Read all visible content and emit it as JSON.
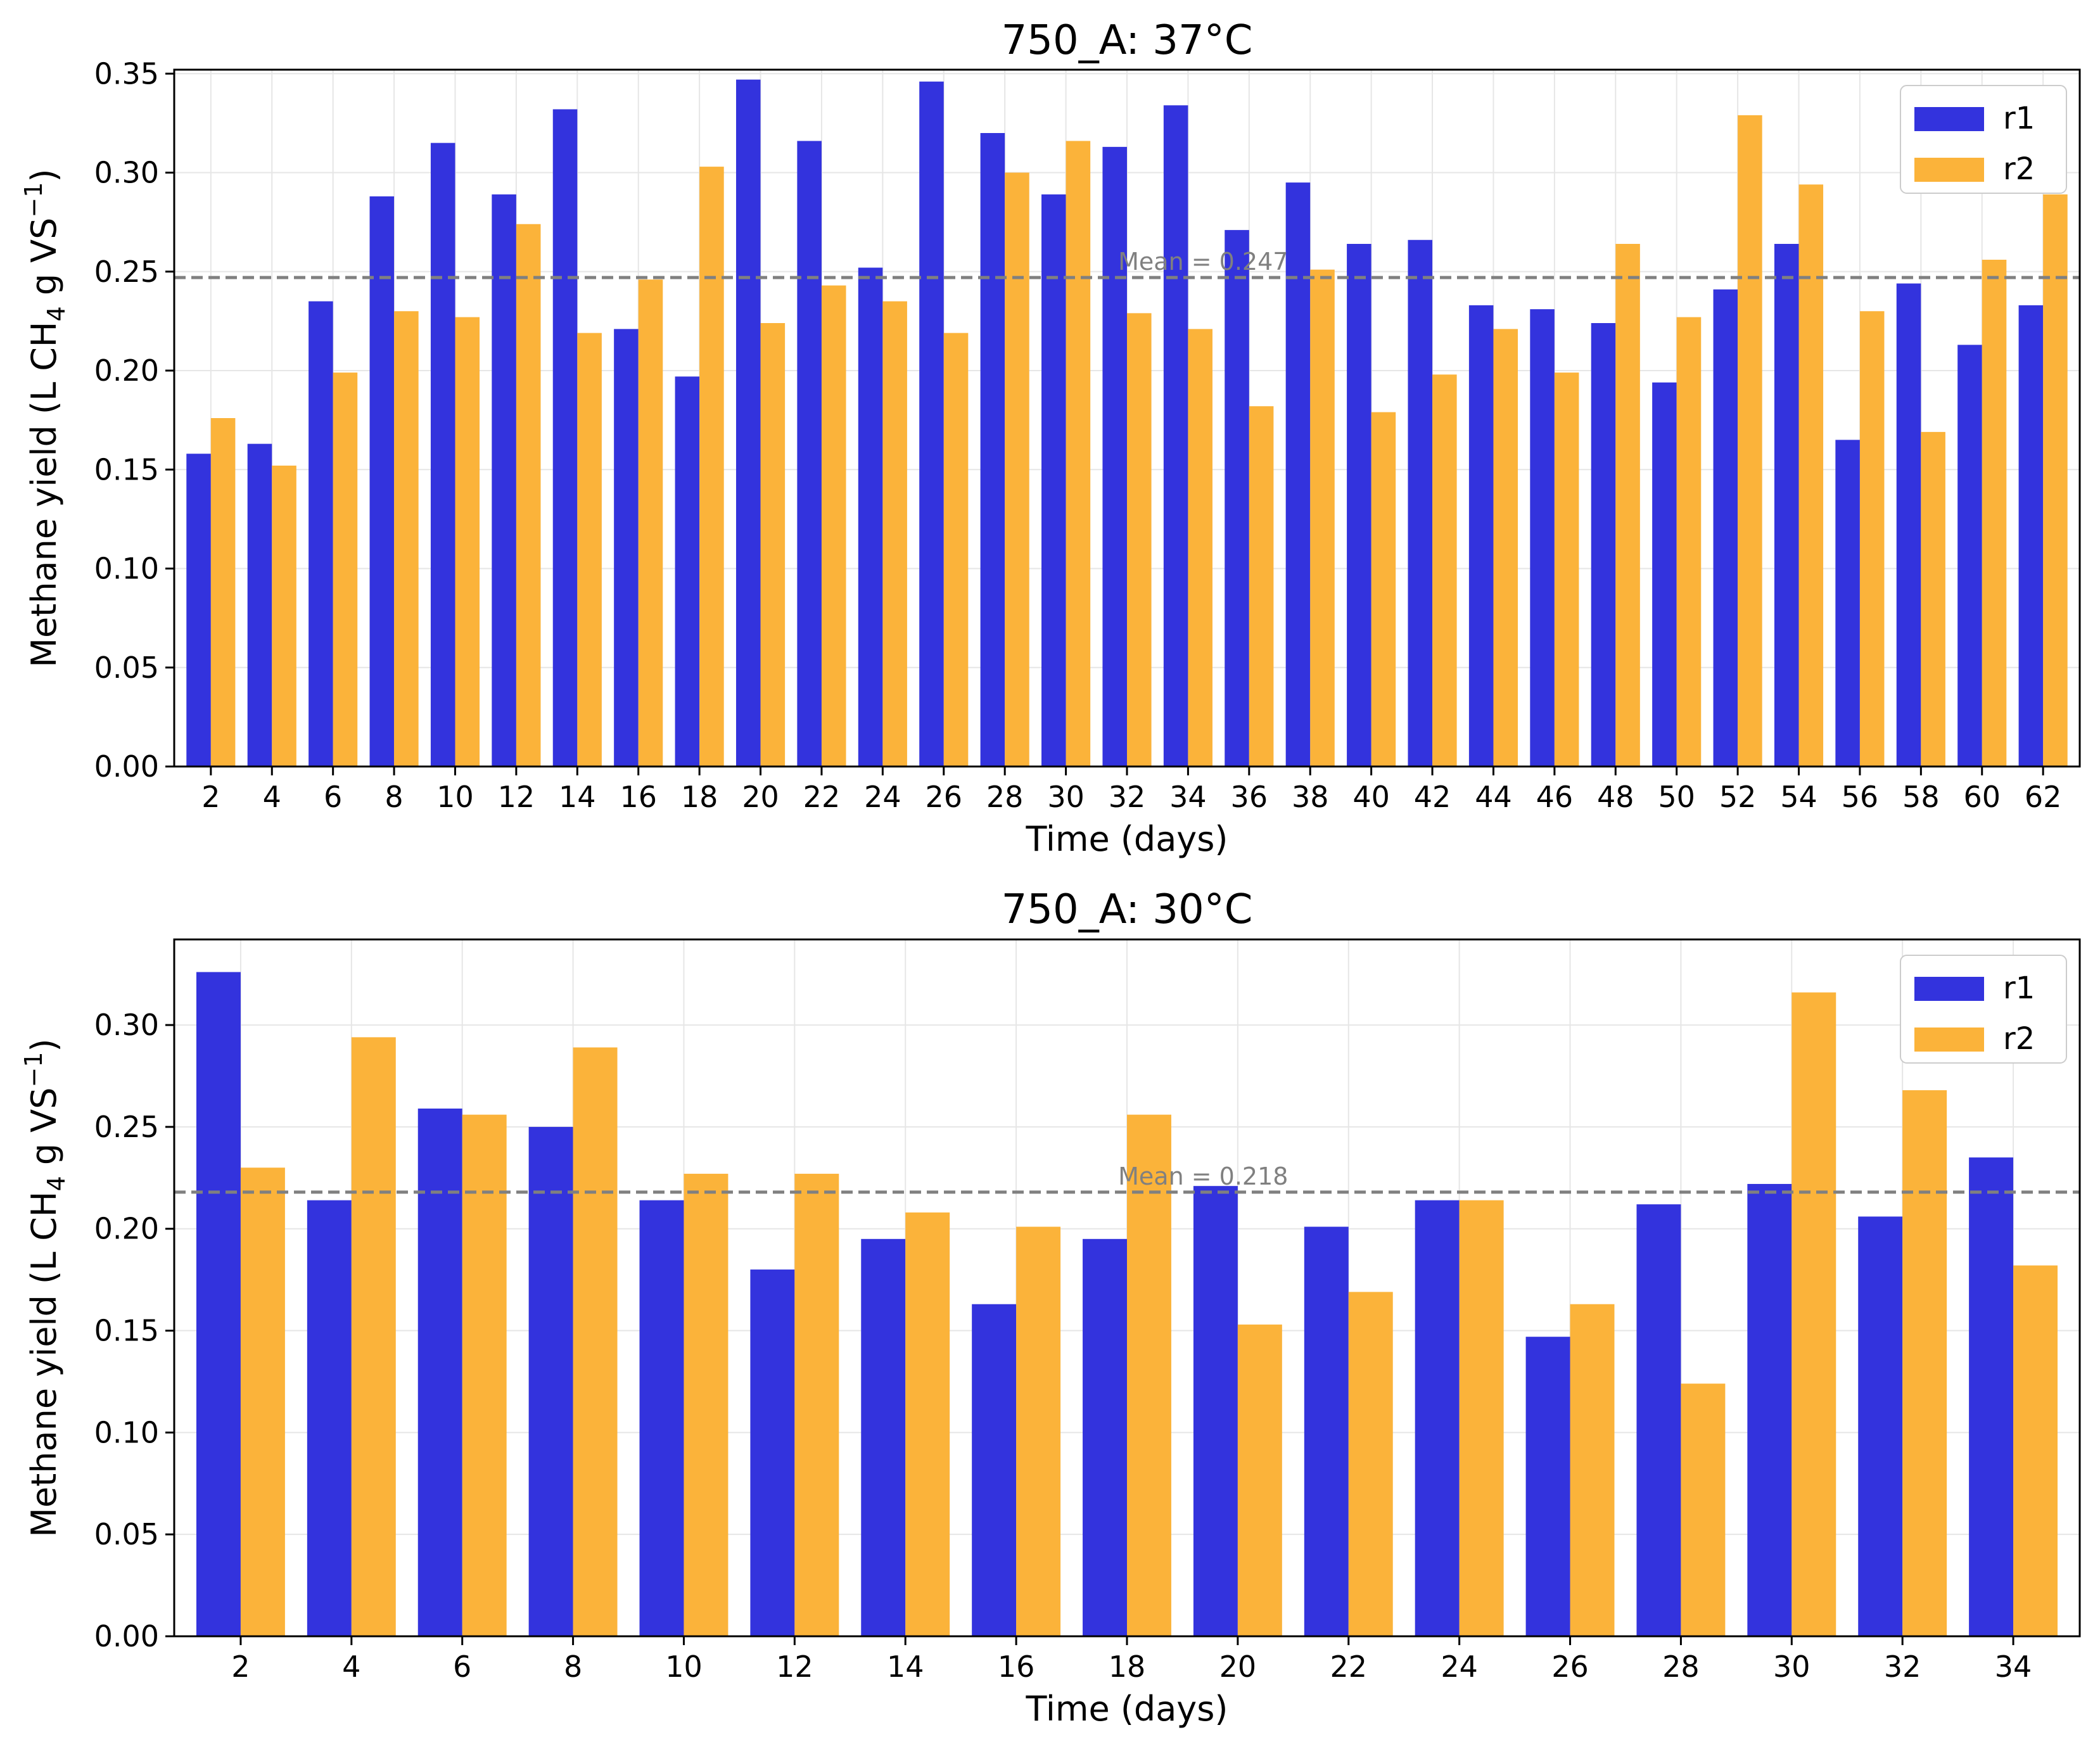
{
  "colors": {
    "r1": "#3333dd",
    "r2": "#fbb33a",
    "mean_line": "#808080",
    "grid": "#e6e6e6"
  },
  "chart_data": [
    {
      "type": "bar",
      "title": "750_A: 37°C",
      "xlabel": "Time (days)",
      "ylabel": {
        "main": "Methane yield (L CH",
        "sub": "4",
        "mid": " g VS",
        "sup": "−1",
        "end": ")"
      },
      "ylim": [
        0,
        0.352
      ],
      "yticks": [
        "0.00",
        "0.05",
        "0.10",
        "0.15",
        "0.20",
        "0.25",
        "0.30",
        "0.35"
      ],
      "ytick_values": [
        0,
        0.05,
        0.1,
        0.15,
        0.2,
        0.25,
        0.3,
        0.35
      ],
      "categories": [
        "2",
        "4",
        "6",
        "8",
        "10",
        "12",
        "14",
        "16",
        "18",
        "20",
        "22",
        "24",
        "26",
        "28",
        "30",
        "32",
        "34",
        "36",
        "38",
        "40",
        "42",
        "44",
        "46",
        "48",
        "50",
        "52",
        "54",
        "56",
        "58",
        "60",
        "62"
      ],
      "series": [
        {
          "name": "r1",
          "values": [
            0.158,
            0.163,
            0.235,
            0.288,
            0.315,
            0.289,
            0.332,
            0.221,
            0.197,
            0.347,
            0.316,
            0.252,
            0.346,
            0.32,
            0.289,
            0.313,
            0.334,
            0.271,
            0.295,
            0.264,
            0.266,
            0.233,
            0.231,
            0.224,
            0.194,
            0.241,
            0.264,
            0.165,
            0.244,
            0.213,
            0.233
          ]
        },
        {
          "name": "r2",
          "values": [
            0.176,
            0.152,
            0.199,
            0.23,
            0.227,
            0.274,
            0.219,
            0.246,
            0.303,
            0.224,
            0.243,
            0.235,
            0.219,
            0.3,
            0.316,
            0.229,
            0.221,
            0.182,
            0.251,
            0.179,
            0.198,
            0.221,
            0.199,
            0.264,
            0.227,
            0.329,
            0.294,
            0.23,
            0.169,
            0.256,
            0.289
          ]
        }
      ],
      "mean": 0.247,
      "mean_label": "Mean = 0.247",
      "legend": [
        "r1",
        "r2"
      ],
      "legend_position": "top-right",
      "grid": true
    },
    {
      "type": "bar",
      "title": "750_A: 30°C",
      "xlabel": "Time (days)",
      "ylabel": {
        "main": "Methane yield (L CH",
        "sub": "4",
        "mid": " g VS",
        "sup": "−1",
        "end": ")"
      },
      "ylim": [
        0,
        0.342
      ],
      "yticks": [
        "0.00",
        "0.05",
        "0.10",
        "0.15",
        "0.20",
        "0.25",
        "0.30"
      ],
      "ytick_values": [
        0,
        0.05,
        0.1,
        0.15,
        0.2,
        0.25,
        0.3
      ],
      "categories": [
        "2",
        "4",
        "6",
        "8",
        "10",
        "12",
        "14",
        "16",
        "18",
        "20",
        "22",
        "24",
        "26",
        "28",
        "30",
        "32",
        "34"
      ],
      "series": [
        {
          "name": "r1",
          "values": [
            0.326,
            0.214,
            0.259,
            0.25,
            0.214,
            0.18,
            0.195,
            0.163,
            0.195,
            0.221,
            0.201,
            0.214,
            0.147,
            0.212,
            0.222,
            0.206,
            0.235
          ]
        },
        {
          "name": "r2",
          "values": [
            0.23,
            0.294,
            0.256,
            0.289,
            0.227,
            0.227,
            0.208,
            0.201,
            0.256,
            0.153,
            0.169,
            0.214,
            0.163,
            0.124,
            0.316,
            0.268,
            0.182
          ]
        }
      ],
      "mean": 0.218,
      "mean_label": "Mean = 0.218",
      "legend": [
        "r1",
        "r2"
      ],
      "legend_position": "top-right",
      "grid": true
    }
  ]
}
